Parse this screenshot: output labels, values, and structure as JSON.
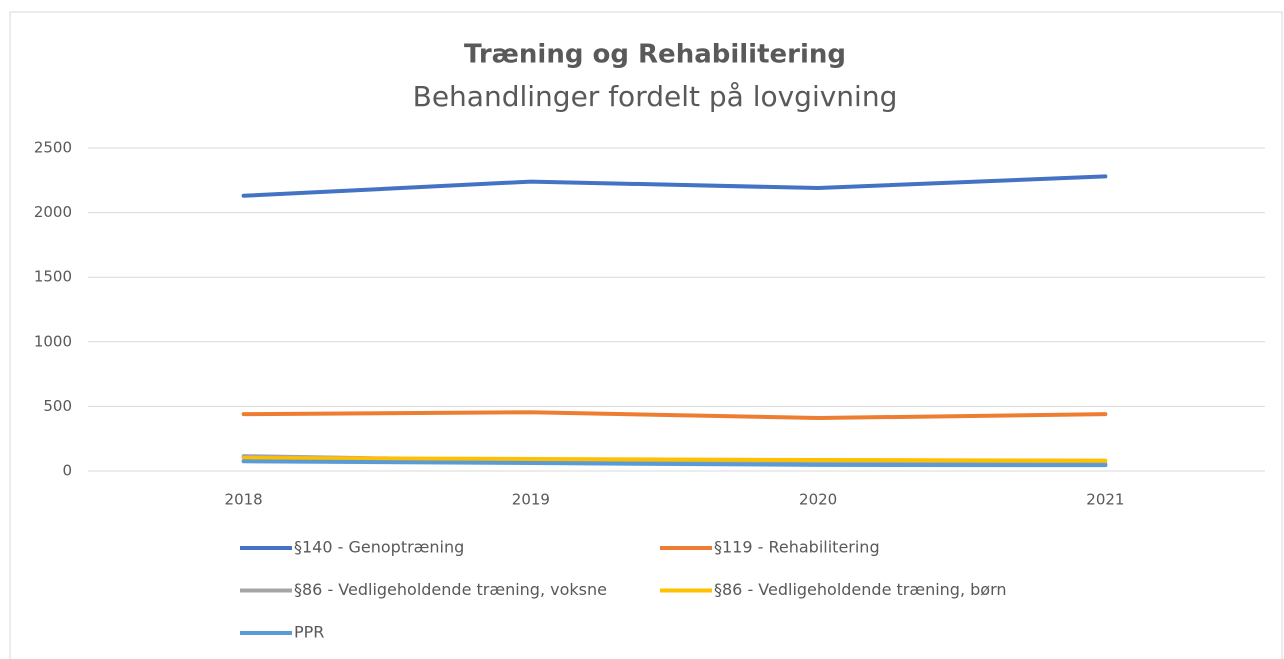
{
  "chart_data": {
    "type": "line",
    "title": "Træning og Rehabilitering",
    "subtitle": "Behandlinger fordelt på lovgivning",
    "categories": [
      "2018",
      "2019",
      "2020",
      "2021"
    ],
    "series": [
      {
        "name": "§140 - Genoptræning",
        "color": "#4472c4",
        "values": [
          2130,
          2240,
          2190,
          2280
        ]
      },
      {
        "name": "§119 - Rehabilitering",
        "color": "#ed7d31",
        "values": [
          440,
          455,
          410,
          440
        ]
      },
      {
        "name": "§86 - Vedligeholdende træning, voksne",
        "color": "#a5a5a5",
        "values": [
          115,
          80,
          65,
          55
        ]
      },
      {
        "name": "§86 - Vedligeholdende træning, børn",
        "color": "#ffc000",
        "values": [
          100,
          93,
          85,
          80
        ]
      },
      {
        "name": "PPR",
        "color": "#5b9bd5",
        "values": [
          75,
          62,
          47,
          45
        ]
      }
    ],
    "ylim": [
      0,
      2500
    ],
    "yticks": [
      0,
      500,
      1000,
      1500,
      2000,
      2500
    ],
    "grid": true,
    "legend": "bottom"
  }
}
